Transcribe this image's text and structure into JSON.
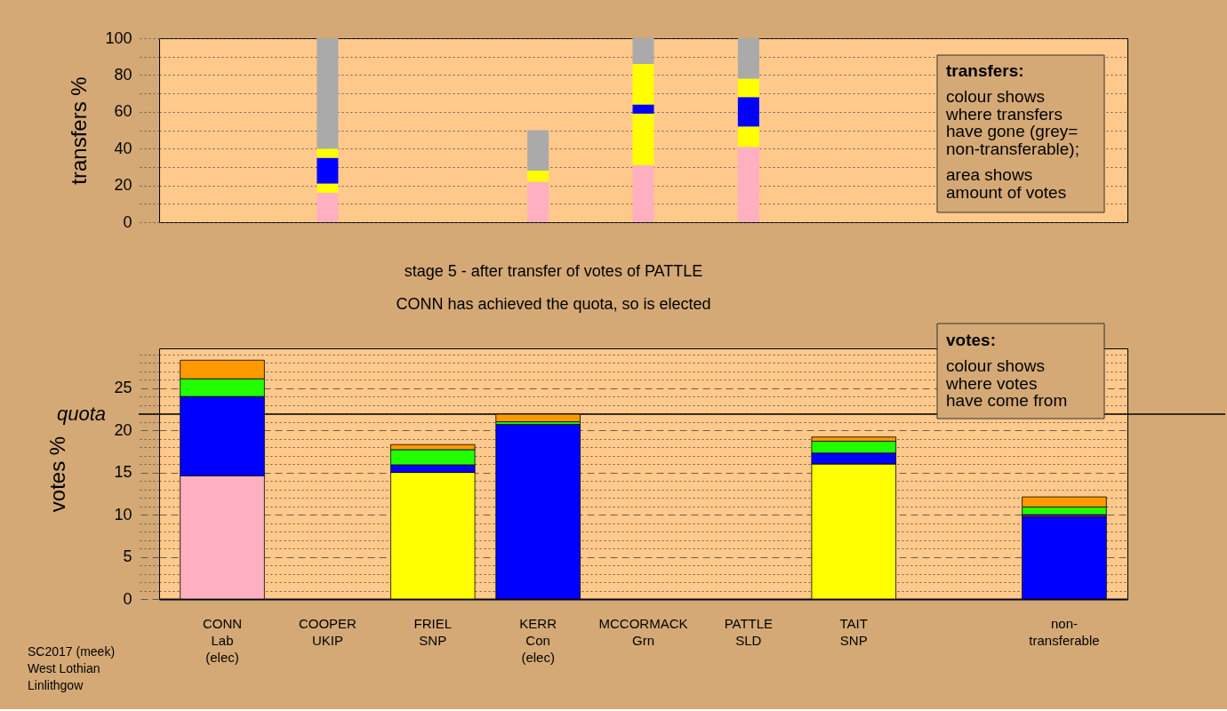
{
  "chart_data": [
    {
      "type": "bar",
      "stacked": true,
      "ylabel": "transfers %",
      "categories": [
        null,
        null,
        null,
        null,
        null,
        null,
        null,
        null,
        null
      ],
      "tick_labels": "y",
      "ylim": [
        0,
        100
      ],
      "yticks": [
        0,
        {
          "value": 10,
          "label": null
        },
        20,
        {
          "value": 30,
          "label": null
        },
        40,
        {
          "value": 50,
          "label": null
        },
        60,
        {
          "value": 70,
          "label": null
        },
        80,
        {
          "value": 90,
          "label": null
        },
        100
      ],
      "grid": "y",
      "series": [
        {
          "color": "#ffb0c0",
          "values": [
            null,
            16,
            null,
            22,
            31,
            41,
            null,
            null,
            null
          ]
        },
        {
          "color": "#ffff00",
          "values": [
            null,
            5,
            null,
            2,
            28,
            11,
            null,
            null,
            null
          ]
        },
        {
          "color": "#0000ff",
          "values": [
            null,
            14,
            null,
            null,
            5,
            16,
            null,
            null,
            null
          ]
        },
        {
          "color": "#ffff00",
          "values": [
            null,
            5,
            null,
            4,
            22,
            10,
            null,
            null,
            null
          ]
        },
        {
          "color": "#aaaaaa",
          "values": [
            null,
            60,
            null,
            22,
            14,
            22,
            null,
            null,
            null
          ]
        }
      ],
      "annotations": [
        "transfers:",
        "colour shows\nwhere transfers\nhave gone (grey=\nnon-transferable);",
        "area shows\namount of votes"
      ]
    },
    {
      "type": "bar",
      "stacked": true,
      "title": "stage 5 - after transfer of votes of PATTLE",
      "subtitle": "CONN has achieved the quota, so is elected",
      "ylabel": "votes %",
      "categories": [
        "CONN\nLab\n(elec)",
        "COOPER\nUKIP",
        "FRIEL\nSNP",
        "KERR\nCon\n(elec)",
        "MCCORMACK\nGrn",
        "PATTLE\nSLD",
        "TAIT\nSNP",
        null,
        "non-\ntransferable"
      ],
      "ylim": [
        0,
        29.7
      ],
      "yticks": [
        0,
        {
          "value": 1,
          "label": null
        },
        {
          "value": 2,
          "label": null
        },
        {
          "value": 3,
          "label": null
        },
        {
          "value": 4,
          "label": null
        },
        5,
        {
          "value": 6,
          "label": null
        },
        {
          "value": 7,
          "label": null
        },
        {
          "value": 8,
          "label": null
        },
        {
          "value": 9,
          "label": null
        },
        10,
        {
          "value": 11,
          "label": null
        },
        {
          "value": 12,
          "label": null
        },
        {
          "value": 13,
          "label": null
        },
        {
          "value": 14,
          "label": null
        },
        15,
        {
          "value": 16,
          "label": null
        },
        {
          "value": 17,
          "label": null
        },
        {
          "value": 18,
          "label": null
        },
        {
          "value": 19,
          "label": null
        },
        20,
        {
          "value": 21,
          "label": null
        },
        {
          "value": 22,
          "label": null
        },
        {
          "value": 23,
          "label": null
        },
        {
          "value": 24,
          "label": null
        },
        25,
        {
          "value": 26,
          "label": null
        },
        {
          "value": 27,
          "label": null
        },
        {
          "value": 28,
          "label": null
        },
        {
          "value": 29,
          "label": null
        }
      ],
      "grid": "y",
      "ref_lines": [
        {
          "axis": "y",
          "value": 21.9,
          "label": "quota"
        }
      ],
      "series": [
        {
          "color": "#ffb0c0",
          "values": [
            14.6,
            null,
            null,
            null,
            null,
            null,
            null,
            null,
            null
          ]
        },
        {
          "color": "#ffff00",
          "values": [
            null,
            null,
            15.0,
            null,
            null,
            null,
            null,
            null,
            null
          ]
        },
        {
          "color": "#ffff00",
          "values": [
            null,
            null,
            null,
            null,
            null,
            null,
            16.0,
            null,
            null
          ]
        },
        {
          "color": "#0000ff",
          "values": [
            9.4,
            null,
            0.9,
            20.7,
            null,
            null,
            1.3,
            null,
            9.7
          ]
        },
        {
          "color": "#7000d0",
          "values": [
            null,
            null,
            null,
            null,
            null,
            null,
            null,
            null,
            0.3
          ]
        },
        {
          "color": "#22ff00",
          "values": [
            2.1,
            null,
            1.8,
            0.3,
            null,
            null,
            1.4,
            null,
            0.9
          ]
        },
        {
          "color": "#ff9900",
          "values": [
            2.2,
            null,
            0.6,
            0.9,
            null,
            null,
            0.5,
            null,
            1.2
          ]
        }
      ],
      "annotations": [
        "votes:",
        "colour shows\nwhere votes\nhave come from",
        "SC2017 (meek)\nWest Lothian\nLinlithgow"
      ]
    }
  ]
}
